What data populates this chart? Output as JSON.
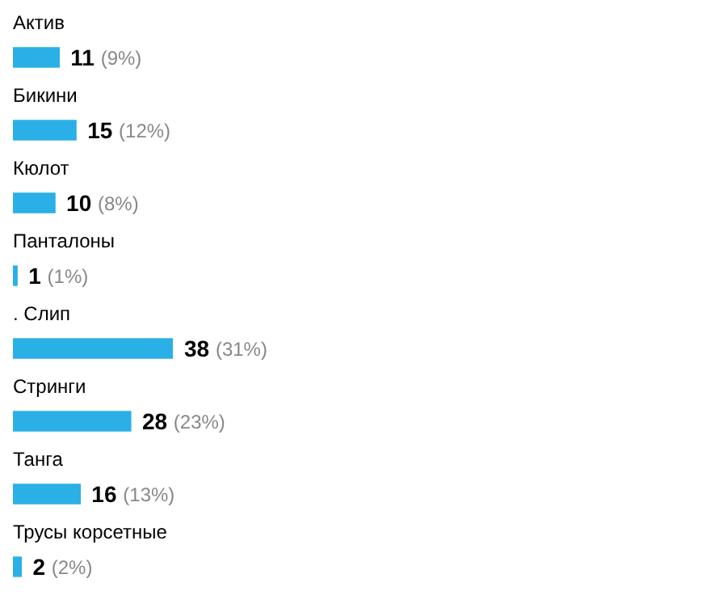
{
  "chart_data": {
    "type": "bar",
    "orientation": "horizontal",
    "categories": [
      "Актив",
      "Бикини",
      "Кюлот",
      "Панталоны",
      ". Слип",
      "Стринги",
      "Танга",
      "Трусы корсетные"
    ],
    "values": [
      11,
      15,
      10,
      1,
      38,
      28,
      16,
      2
    ],
    "value_labels": [
      "11 (9%)",
      "15 (12%)",
      "10 (8%)",
      "1 (1%)",
      "38 (31%)",
      "28 (23%)",
      "16 (13%)",
      "2 (2%)"
    ],
    "color": "#2ab0e6"
  }
}
